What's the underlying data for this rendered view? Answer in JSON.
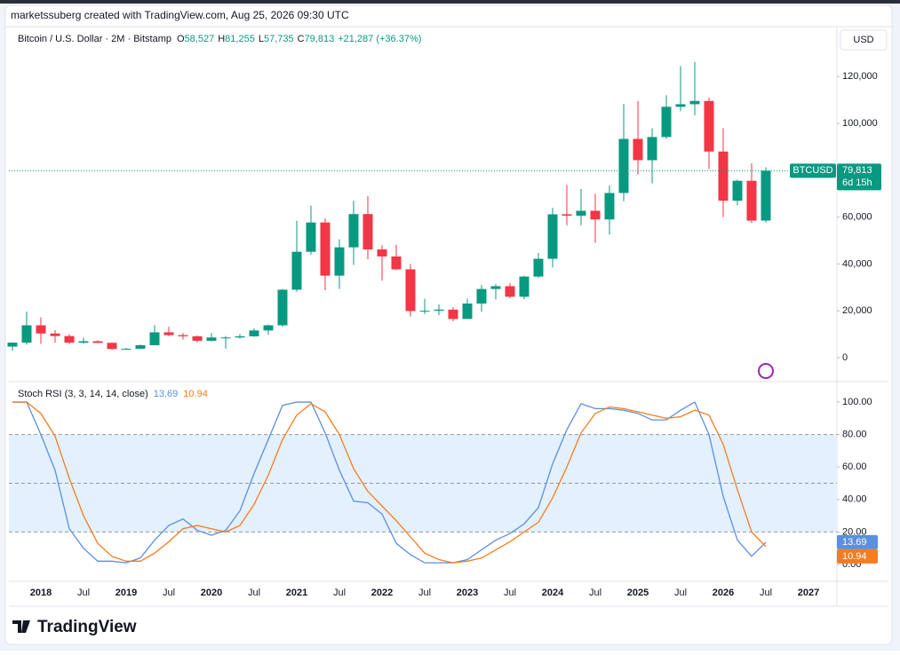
{
  "header": {
    "attribution": "marketssuberg created with TradingView.com, Aug 25, 2026 09:30 UTC",
    "symbol": "Bitcoin / U.S. Dollar · 2M · Bitstamp",
    "ohlc": [
      {
        "key": "O",
        "value": "58,527"
      },
      {
        "key": "H",
        "value": "81,255"
      },
      {
        "key": "L",
        "value": "57,735"
      },
      {
        "key": "C",
        "value": "79,813"
      }
    ],
    "change": "+21,287 (+36.37%)",
    "currency": "USD",
    "logo": "TradingView"
  },
  "chart_data": [
    {
      "type": "candlestick",
      "symbol_tag": "BTCUSD",
      "last_label": "79,813",
      "countdown": "6d 15h",
      "up_color": "#089981",
      "down_color": "#f23645",
      "categories": [
        null,
        null,
        "2018",
        null,
        null,
        "Jul",
        null,
        null,
        "2019",
        null,
        null,
        "Jul",
        null,
        null,
        "2020",
        null,
        null,
        "Jul",
        null,
        null,
        "2021",
        null,
        null,
        "Jul",
        null,
        null,
        "2022",
        null,
        null,
        "Jul",
        null,
        null,
        "2023",
        null,
        null,
        "Jul",
        null,
        null,
        "2024",
        null,
        null,
        "Jul",
        null,
        null,
        "2025",
        null,
        null,
        "Jul",
        null,
        null,
        "2026",
        null,
        null,
        "Jul",
        null,
        null,
        "2027"
      ],
      "open": [
        4700,
        6400,
        13800,
        10300,
        9200,
        6400,
        7000,
        6300,
        3700,
        3800,
        5300,
        10800,
        9600,
        9100,
        7200,
        8600,
        8600,
        9100,
        11600,
        13800,
        29000,
        45200,
        57700,
        35000,
        47100,
        61300,
        46200,
        43200,
        37700,
        19900,
        20000,
        20500,
        16500,
        23100,
        29300,
        30500,
        26000,
        34600,
        42200,
        61200,
        60600,
        62700,
        59000,
        70300,
        93400,
        84300,
        94200,
        107100,
        108200,
        109600,
        88000,
        67000,
        75500,
        58527,
        null,
        null,
        null
      ],
      "high": [
        6500,
        19700,
        17200,
        11700,
        10000,
        8500,
        7400,
        6500,
        4200,
        5600,
        13900,
        13200,
        10500,
        9500,
        10500,
        9200,
        10100,
        12500,
        14100,
        29300,
        58400,
        64900,
        59500,
        50500,
        67000,
        69000,
        48000,
        48200,
        40000,
        25200,
        22700,
        21500,
        25200,
        31000,
        31400,
        31800,
        35000,
        44700,
        64000,
        73800,
        72000,
        70000,
        73600,
        108300,
        109500,
        97900,
        112000,
        124500,
        126200,
        111000,
        98000,
        76000,
        83000,
        81255,
        null,
        null,
        null
      ],
      "low": [
        2900,
        5500,
        5900,
        6400,
        5800,
        5900,
        6200,
        3200,
        3300,
        3700,
        5300,
        9100,
        7700,
        6500,
        6900,
        3800,
        8100,
        8900,
        9800,
        13200,
        28100,
        44000,
        28800,
        29300,
        39600,
        42000,
        32900,
        37400,
        17600,
        18600,
        18100,
        15500,
        16500,
        19600,
        24800,
        25300,
        24900,
        34100,
        38500,
        56500,
        56500,
        49000,
        52500,
        66800,
        78200,
        74400,
        93400,
        105300,
        103500,
        80500,
        60000,
        65000,
        57500,
        57735,
        null,
        null,
        null
      ],
      "close": [
        6400,
        13800,
        10300,
        9200,
        6400,
        7000,
        6300,
        3700,
        3800,
        5300,
        10800,
        9600,
        9100,
        7200,
        8600,
        8600,
        9100,
        11600,
        13800,
        29000,
        45200,
        57700,
        35000,
        47100,
        61300,
        46200,
        43200,
        37700,
        19900,
        20000,
        20500,
        16500,
        23100,
        29300,
        30500,
        26000,
        34600,
        42200,
        61200,
        60600,
        62700,
        59000,
        70300,
        93400,
        84300,
        94200,
        107100,
        108200,
        109600,
        88000,
        67000,
        75500,
        58500,
        79813,
        null,
        null,
        null
      ],
      "ylim": [
        -9500,
        133000
      ],
      "yticks": [
        0,
        {
          "value": 20000,
          "label": "20,000"
        },
        {
          "value": 40000,
          "label": "40,000"
        },
        {
          "value": 60000,
          "label": "60,000"
        },
        {
          "value": 80000,
          "label": "80,000"
        },
        {
          "value": 100000,
          "label": "100,000"
        },
        {
          "value": 120000,
          "label": "120,000"
        }
      ],
      "grid": false
    },
    {
      "type": "line",
      "title": "Stoch RSI (3, 3, 14, 14, close)",
      "series": [
        {
          "color": "#5b8fdf",
          "values": [
            100,
            100,
            80,
            58,
            22,
            10,
            2,
            2,
            1,
            4,
            15,
            24,
            28,
            21,
            18,
            21,
            33,
            56,
            77,
            98,
            100,
            100,
            81,
            58,
            39,
            38,
            31,
            13,
            6,
            1,
            1,
            1,
            3,
            9,
            15,
            19,
            25,
            35,
            62,
            83,
            99,
            96,
            96,
            95,
            93,
            89,
            89,
            95,
            100,
            80,
            42,
            15,
            5,
            13.69,
            null,
            null,
            null
          ]
        },
        {
          "color": "#f57c1f",
          "values": [
            100,
            100,
            93,
            79,
            53,
            30,
            13,
            5,
            2,
            2,
            7,
            14,
            22,
            24,
            22,
            20,
            24,
            37,
            55,
            77,
            92,
            99,
            94,
            80,
            59,
            45,
            36,
            27,
            17,
            7,
            3,
            1,
            2,
            4,
            9,
            14,
            20,
            26,
            41,
            60,
            81,
            93,
            97,
            96,
            94,
            92,
            90,
            91,
            95,
            92,
            74,
            46,
            20,
            10.94,
            null,
            null,
            null
          ]
        }
      ],
      "levels": [
        80,
        50,
        20
      ],
      "band_color": "#e3f0fd",
      "ylim": [
        -10.4,
        111.5
      ],
      "yticks": [
        {
          "value": 0,
          "label": "0.00"
        },
        {
          "value": 20,
          "label": "20.00"
        },
        {
          "value": 40,
          "label": "40.00"
        },
        {
          "value": 60,
          "label": "60.00"
        },
        {
          "value": 80,
          "label": "80.00"
        },
        {
          "value": 100,
          "label": "100.00"
        }
      ],
      "grid": false
    }
  ]
}
